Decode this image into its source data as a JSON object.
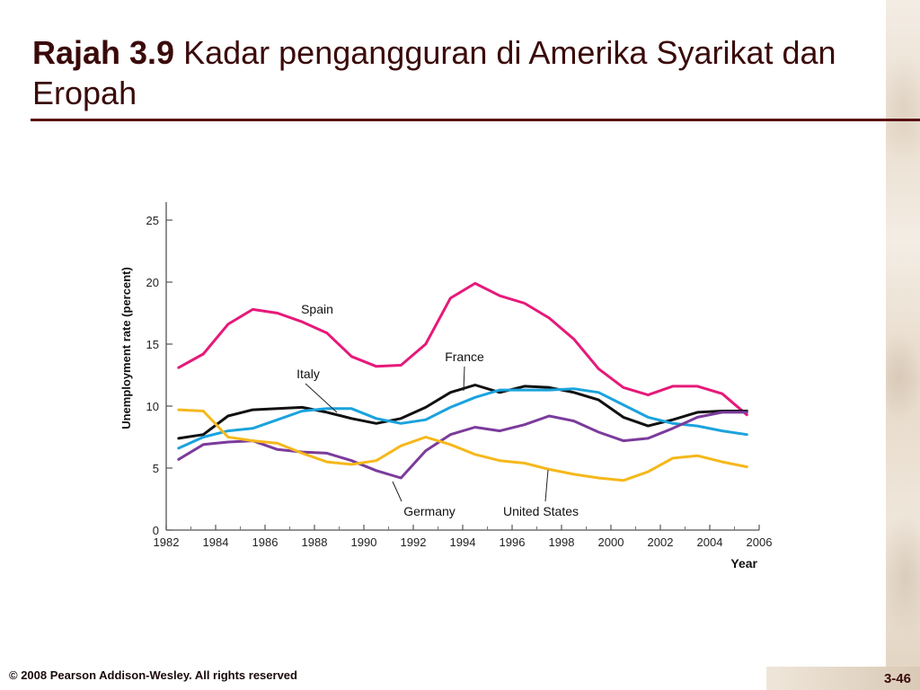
{
  "slide": {
    "title_bold": "Rajah 3.9",
    "title_rest": " Kadar pengangguran di Amerika Syarikat dan Eropah",
    "footer": "© 2008 Pearson Addison-Wesley. All rights reserved",
    "page_number": "3-46"
  },
  "chart_data": {
    "type": "line",
    "title": "",
    "xlabel": "Year",
    "ylabel": "Unemployment rate (percent)",
    "xlim": [
      1982,
      2006
    ],
    "ylim": [
      0,
      25
    ],
    "x_ticks": [
      "1982",
      "1984",
      "1986",
      "1988",
      "1990",
      "1992",
      "1994",
      "1996",
      "1998",
      "2000",
      "2002",
      "2004",
      "2006"
    ],
    "y_ticks": [
      "0",
      "5",
      "10",
      "15",
      "20",
      "25"
    ],
    "grid": false,
    "legend": "inline labels",
    "x": [
      1982.5,
      1983.5,
      1984.5,
      1985.5,
      1986.5,
      1987.5,
      1988.5,
      1989.5,
      1990.5,
      1991.5,
      1992.5,
      1993.5,
      1994.5,
      1995.5,
      1996.5,
      1997.5,
      1998.5,
      1999.5,
      2000.5,
      2001.5,
      2002.5,
      2003.5,
      2004.5,
      2005.5
    ],
    "series": [
      {
        "name": "Spain",
        "color": "#e6197a",
        "values": [
          13.1,
          14.2,
          16.6,
          17.8,
          17.5,
          16.8,
          15.9,
          14.0,
          13.2,
          13.3,
          15.0,
          18.7,
          19.9,
          18.9,
          18.3,
          17.1,
          15.4,
          13.0,
          11.5,
          10.9,
          11.6,
          11.6,
          11.0,
          9.3
        ]
      },
      {
        "name": "France",
        "color": "#111111",
        "values": [
          7.4,
          7.7,
          9.2,
          9.7,
          9.8,
          9.9,
          9.5,
          9.0,
          8.6,
          9.0,
          9.9,
          11.1,
          11.7,
          11.1,
          11.6,
          11.5,
          11.1,
          10.5,
          9.1,
          8.4,
          8.9,
          9.5,
          9.6,
          9.6
        ]
      },
      {
        "name": "Italy",
        "color": "#1aa3dd",
        "values": [
          6.6,
          7.5,
          8.0,
          8.2,
          8.9,
          9.6,
          9.8,
          9.8,
          9.0,
          8.6,
          8.9,
          9.9,
          10.7,
          11.3,
          11.3,
          11.3,
          11.4,
          11.1,
          10.1,
          9.1,
          8.6,
          8.4,
          8.0,
          7.7
        ]
      },
      {
        "name": "Germany",
        "color": "#7b3b9b",
        "values": [
          5.7,
          6.9,
          7.1,
          7.2,
          6.5,
          6.3,
          6.2,
          5.6,
          4.8,
          4.2,
          6.4,
          7.7,
          8.3,
          8.0,
          8.5,
          9.2,
          8.8,
          7.9,
          7.2,
          7.4,
          8.2,
          9.1,
          9.5,
          9.5
        ]
      },
      {
        "name": "United States",
        "color": "#f5b81b",
        "values": [
          9.7,
          9.6,
          7.5,
          7.2,
          7.0,
          6.2,
          5.5,
          5.3,
          5.6,
          6.8,
          7.5,
          6.9,
          6.1,
          5.6,
          5.4,
          4.9,
          4.5,
          4.2,
          4.0,
          4.7,
          5.8,
          6.0,
          5.5,
          5.1
        ]
      }
    ],
    "annotations": [
      {
        "text": "Spain"
      },
      {
        "text": "France"
      },
      {
        "text": "Italy"
      },
      {
        "text": "Germany"
      },
      {
        "text": "United States"
      }
    ]
  }
}
